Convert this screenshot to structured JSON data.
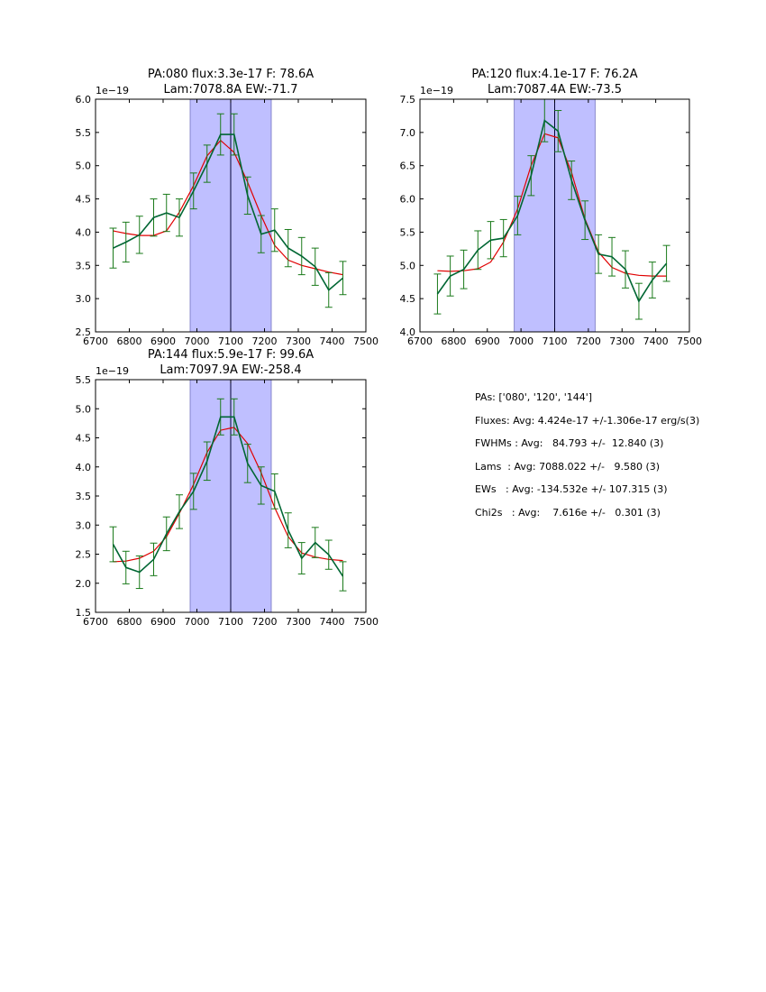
{
  "chart_data": [
    {
      "type": "line",
      "title_line1": "PA:080 flux:3.3e-17 F: 78.6A",
      "title_line2": "Lam:7078.8A EW:-71.7",
      "xlim": [
        6700,
        7500
      ],
      "ylim": [
        2.5,
        6.0
      ],
      "xticks": [
        6700,
        6800,
        6900,
        7000,
        7100,
        7200,
        7300,
        7400,
        7500
      ],
      "yticks": [
        "2.5",
        "3.0",
        "3.5",
        "4.0",
        "4.5",
        "5.0",
        "5.5",
        "6.0"
      ],
      "y_offset": "1e−19",
      "band": [
        6980,
        7220
      ],
      "vline": 7100,
      "x": [
        6752,
        6790,
        6830,
        6872,
        6910,
        6948,
        6990,
        7030,
        7070,
        7110,
        7150,
        7190,
        7230,
        7270,
        7310,
        7350,
        7390,
        7432
      ],
      "series": [
        {
          "role": "data",
          "color": "#006633",
          "values": [
            3.76,
            3.85,
            3.96,
            4.22,
            4.29,
            4.22,
            4.62,
            5.03,
            5.47,
            5.47,
            4.55,
            3.97,
            4.03,
            3.76,
            3.64,
            3.48,
            3.13,
            3.31
          ],
          "errors": [
            0.3,
            0.3,
            0.28,
            0.28,
            0.28,
            0.28,
            0.27,
            0.28,
            0.31,
            0.31,
            0.28,
            0.28,
            0.32,
            0.28,
            0.28,
            0.28,
            0.26,
            0.25
          ]
        },
        {
          "role": "model",
          "color": "#e00000",
          "values": [
            4.02,
            3.98,
            3.95,
            3.95,
            4.02,
            4.3,
            4.7,
            5.15,
            5.38,
            5.2,
            4.75,
            4.25,
            3.8,
            3.58,
            3.5,
            3.45,
            3.4,
            3.36
          ]
        }
      ]
    },
    {
      "type": "line",
      "title_line1": "PA:120 flux:4.1e-17 F: 76.2A",
      "title_line2": "Lam:7087.4A EW:-73.5",
      "xlim": [
        6700,
        7500
      ],
      "ylim": [
        4.0,
        7.5
      ],
      "xticks": [
        6700,
        6800,
        6900,
        7000,
        7100,
        7200,
        7300,
        7400,
        7500
      ],
      "yticks": [
        "4.0",
        "4.5",
        "5.0",
        "5.5",
        "6.0",
        "6.5",
        "7.0",
        "7.5"
      ],
      "y_offset": "1e−19",
      "band": [
        6980,
        7220
      ],
      "vline": 7100,
      "x": [
        6752,
        6790,
        6830,
        6872,
        6910,
        6948,
        6990,
        7030,
        7070,
        7110,
        7150,
        7190,
        7230,
        7270,
        7310,
        7350,
        7390,
        7432
      ],
      "series": [
        {
          "role": "data",
          "color": "#006633",
          "values": [
            4.57,
            4.84,
            4.94,
            5.23,
            5.38,
            5.41,
            5.75,
            6.35,
            7.18,
            7.02,
            6.28,
            5.68,
            5.17,
            5.13,
            4.94,
            4.46,
            4.78,
            5.03
          ],
          "errors": [
            0.3,
            0.3,
            0.29,
            0.29,
            0.28,
            0.28,
            0.29,
            0.3,
            0.32,
            0.31,
            0.29,
            0.29,
            0.29,
            0.29,
            0.28,
            0.27,
            0.27,
            0.27
          ]
        },
        {
          "role": "model",
          "color": "#e00000",
          "values": [
            4.92,
            4.91,
            4.92,
            4.95,
            5.05,
            5.35,
            5.85,
            6.5,
            6.98,
            6.92,
            6.4,
            5.7,
            5.2,
            4.97,
            4.88,
            4.85,
            4.84,
            4.84
          ]
        }
      ]
    },
    {
      "type": "line",
      "title_line1": "PA:144 flux:5.9e-17 F: 99.6A",
      "title_line2": "Lam:7097.9A EW:-258.4",
      "xlim": [
        6700,
        7500
      ],
      "ylim": [
        1.5,
        5.5
      ],
      "xticks": [
        6700,
        6800,
        6900,
        7000,
        7100,
        7200,
        7300,
        7400,
        7500
      ],
      "yticks": [
        "1.5",
        "2.0",
        "2.5",
        "3.0",
        "3.5",
        "4.0",
        "4.5",
        "5.0",
        "5.5"
      ],
      "y_offset": "1e−19",
      "band": [
        6980,
        7220
      ],
      "vline": 7100,
      "x": [
        6752,
        6790,
        6830,
        6872,
        6910,
        6948,
        6990,
        7030,
        7070,
        7110,
        7150,
        7190,
        7230,
        7270,
        7310,
        7350,
        7390,
        7432
      ],
      "series": [
        {
          "role": "data",
          "color": "#006633",
          "values": [
            2.67,
            2.27,
            2.19,
            2.41,
            2.85,
            3.23,
            3.58,
            4.1,
            4.86,
            4.86,
            4.06,
            3.68,
            3.58,
            2.91,
            2.43,
            2.7,
            2.49,
            2.12
          ],
          "errors": [
            0.3,
            0.28,
            0.28,
            0.28,
            0.29,
            0.29,
            0.31,
            0.33,
            0.31,
            0.31,
            0.33,
            0.32,
            0.3,
            0.3,
            0.27,
            0.26,
            0.25,
            0.25
          ]
        },
        {
          "role": "model",
          "color": "#e00000",
          "values": [
            2.37,
            2.38,
            2.43,
            2.55,
            2.8,
            3.2,
            3.7,
            4.25,
            4.63,
            4.68,
            4.4,
            3.9,
            3.3,
            2.8,
            2.52,
            2.45,
            2.41,
            2.39
          ]
        }
      ]
    }
  ],
  "summary": [
    "PAs: ['080', '120', '144']",
    "Fluxes: Avg: 4.424e-17 +/-1.306e-17 erg/s(3)",
    "FWHMs : Avg:   84.793 +/-  12.840 (3)",
    "Lams  : Avg: 7088.022 +/-   9.580 (3)",
    "EWs   : Avg: -134.532e +/- 107.315 (3)",
    "Chi2s   : Avg:    7.616e +/-   0.301 (3)"
  ],
  "colors": {
    "band_fill": "#bfbfff",
    "band_edge": "#7070c0",
    "vline": "#000033",
    "data": "#006633",
    "model": "#e00000",
    "errorbar": "#1a7a1a"
  }
}
